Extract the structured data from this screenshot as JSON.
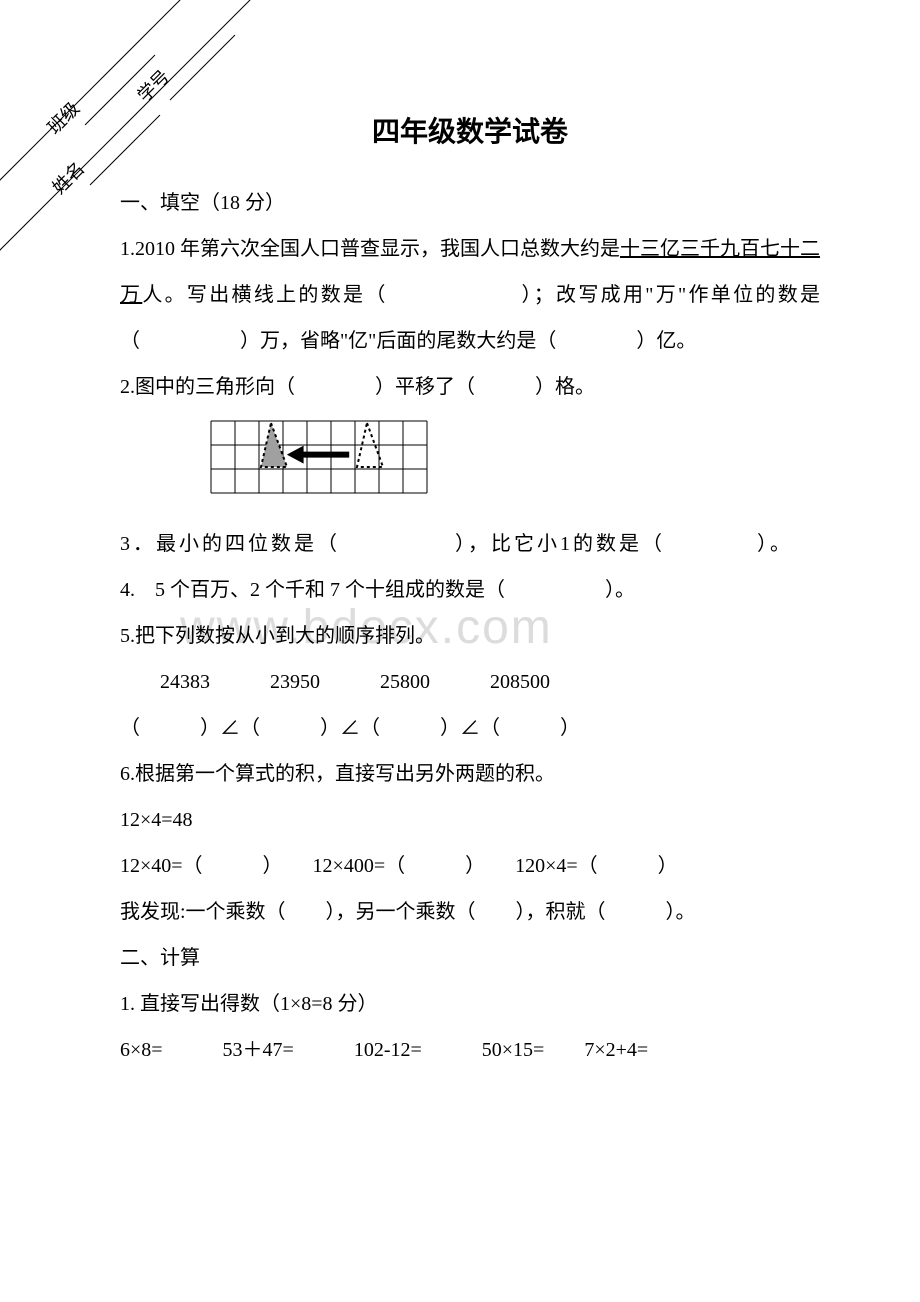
{
  "diagonal": {
    "label1": "班级",
    "label2": "学号",
    "label3": "姓名"
  },
  "title": "四年级数学试卷",
  "watermark": "www.bdocx.com",
  "s1": {
    "heading": "一、填空（18 分）",
    "q1a": "1.2010 年第六次全国人口普查显示，我国人口总数大约是",
    "q1u": "十三亿三千九百七十二万",
    "q1b": "人。写出横线上的数是（　　　　　　）；改写成用\"万\"作单位的数是（　　　　　）万，省略\"亿\"后面的尾数大约是（　　　　）亿。",
    "q2": "2.图中的三角形向（　　　　）平移了（　　　）格。",
    "q3": "3．最小的四位数是（　　　　　），比它小1的数是（　　　　）。",
    "q4": "4.　5 个百万、2 个千和 7 个十组成的数是（　　　　　）。",
    "q5": "5.把下列数按从小到大的顺序排列。",
    "q5nums": "24383　　　23950　　　25800　　　208500",
    "q5line": "（　　　）∠（　　　）∠（　　　）∠（　　　）",
    "q6": "6.根据第一个算式的积，直接写出另外两题的积。",
    "q6a": "12×4=48",
    "q6b": "12×40=（　　　）　　12×400=（　　　）　　120×4=（　　　）",
    "q6c": "我发现:一个乘数（　　），另一个乘数（　　），积就（　　　）。"
  },
  "s2": {
    "heading": "二、计算",
    "q1": "1. 直接写出得数（1×8=8 分）",
    "q1line": "6×8=　　　53＋47=　　　102-12=　　　50×15=　　7×2+4="
  },
  "grid": {
    "cols": 9,
    "rows": 3,
    "cell": 24,
    "border_color": "#000000",
    "fill_color": "#a0a0a0",
    "arrow_color": "#000000"
  }
}
